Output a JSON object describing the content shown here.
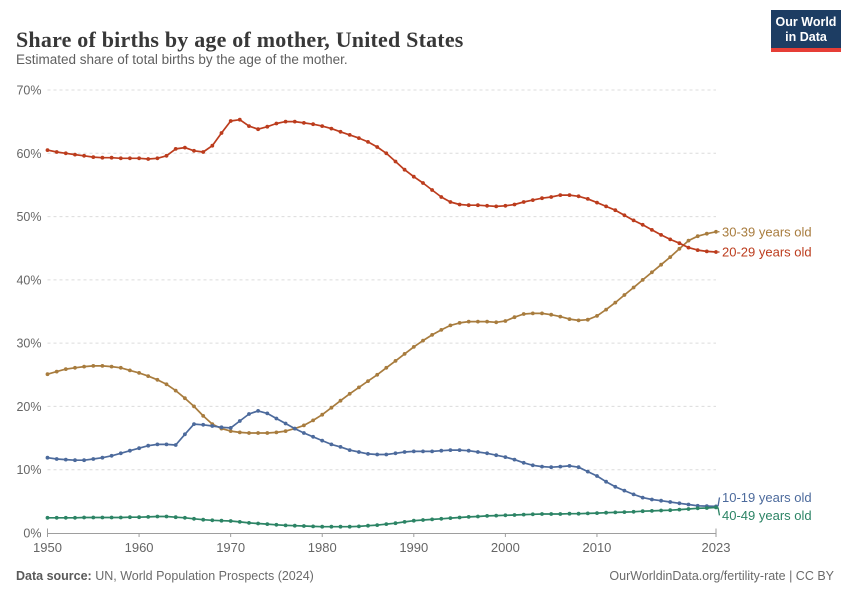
{
  "header": {
    "title": "Share of births by age of mother, United States",
    "subtitle": "Estimated share of total births by the age of the mother.",
    "logo": {
      "line1": "Our World",
      "line2": "in Data",
      "bg_color": "#1d3d63",
      "accent_color": "#e63e36"
    }
  },
  "footer": {
    "source_label": "Data source:",
    "source_text": " UN, World Population Prospects (2024)",
    "link_text": "OurWorldinData.org/fertility-rate | CC BY"
  },
  "chart_data": {
    "type": "line",
    "title": "Share of births by age of mother, United States",
    "subtitle": "Estimated share of total births by the age of the mother.",
    "xlabel": "",
    "ylabel": "",
    "xlim": [
      1950,
      2023
    ],
    "ylim": [
      0,
      70
    ],
    "x_ticks": [
      1950,
      1960,
      1970,
      1980,
      1990,
      2000,
      2010,
      2023
    ],
    "y_ticks": [
      0,
      10,
      20,
      30,
      40,
      50,
      60,
      70
    ],
    "y_tick_suffix": "%",
    "grid": "horizontal-dashed",
    "grid_color": "#dcdcdc",
    "axis_color": "#9e9e9e",
    "tick_text_color": "#666666",
    "legend_position": "right-edge-labels",
    "x_start_year": 1950,
    "series": [
      {
        "name": "30-39 years old",
        "color": "#a87c3e",
        "label_dy": 0,
        "values": [
          25.1,
          25.5,
          25.9,
          26.1,
          26.3,
          26.4,
          26.4,
          26.3,
          26.1,
          25.7,
          25.3,
          24.8,
          24.2,
          23.5,
          22.5,
          21.3,
          20.0,
          18.5,
          17.2,
          16.5,
          16.1,
          15.9,
          15.8,
          15.8,
          15.8,
          15.9,
          16.1,
          16.5,
          17.0,
          17.8,
          18.7,
          19.8,
          20.9,
          22.0,
          23.0,
          24.0,
          25.0,
          26.1,
          27.2,
          28.3,
          29.4,
          30.4,
          31.3,
          32.1,
          32.8,
          33.2,
          33.4,
          33.4,
          33.4,
          33.3,
          33.5,
          34.1,
          34.6,
          34.7,
          34.7,
          34.5,
          34.2,
          33.8,
          33.6,
          33.7,
          34.3,
          35.3,
          36.4,
          37.6,
          38.8,
          40.0,
          41.2,
          42.4,
          43.6,
          44.9,
          46.2,
          46.9,
          47.3,
          47.6
        ]
      },
      {
        "name": "20-29 years old",
        "color": "#bc3c1d",
        "label_dy": 0,
        "values": [
          60.5,
          60.2,
          60.0,
          59.8,
          59.6,
          59.4,
          59.3,
          59.3,
          59.2,
          59.2,
          59.2,
          59.1,
          59.2,
          59.6,
          60.7,
          60.9,
          60.4,
          60.2,
          61.2,
          63.2,
          65.1,
          65.3,
          64.3,
          63.8,
          64.2,
          64.7,
          65.0,
          65.0,
          64.8,
          64.6,
          64.3,
          63.9,
          63.4,
          62.9,
          62.4,
          61.8,
          61.0,
          60.0,
          58.7,
          57.4,
          56.3,
          55.3,
          54.2,
          53.1,
          52.3,
          51.9,
          51.8,
          51.8,
          51.7,
          51.6,
          51.7,
          51.9,
          52.3,
          52.6,
          52.9,
          53.1,
          53.4,
          53.4,
          53.2,
          52.8,
          52.2,
          51.6,
          51.0,
          50.2,
          49.4,
          48.7,
          47.9,
          47.1,
          46.4,
          45.8,
          45.1,
          44.7,
          44.5,
          44.4
        ]
      },
      {
        "name": "10-19 years old",
        "color": "#4c6a9c",
        "label_dy": -9,
        "values": [
          11.9,
          11.7,
          11.6,
          11.5,
          11.5,
          11.7,
          11.9,
          12.2,
          12.6,
          13.0,
          13.4,
          13.8,
          14.0,
          14.0,
          13.9,
          15.6,
          17.2,
          17.1,
          16.9,
          16.7,
          16.6,
          17.7,
          18.8,
          19.3,
          18.9,
          18.1,
          17.3,
          16.5,
          15.8,
          15.2,
          14.6,
          14.0,
          13.6,
          13.1,
          12.8,
          12.5,
          12.4,
          12.4,
          12.6,
          12.8,
          12.9,
          12.9,
          12.9,
          13.0,
          13.1,
          13.1,
          13.0,
          12.8,
          12.6,
          12.3,
          12.0,
          11.6,
          11.1,
          10.7,
          10.5,
          10.4,
          10.5,
          10.6,
          10.4,
          9.7,
          9.0,
          8.1,
          7.3,
          6.7,
          6.1,
          5.6,
          5.3,
          5.1,
          4.9,
          4.7,
          4.5,
          4.3,
          4.25,
          4.2
        ]
      },
      {
        "name": "40-49 years old",
        "color": "#2c8465",
        "label_dy": 8,
        "values": [
          2.4,
          2.4,
          2.4,
          2.4,
          2.45,
          2.45,
          2.45,
          2.45,
          2.45,
          2.5,
          2.5,
          2.55,
          2.6,
          2.6,
          2.5,
          2.4,
          2.25,
          2.1,
          2.0,
          1.95,
          1.9,
          1.75,
          1.6,
          1.5,
          1.4,
          1.3,
          1.2,
          1.15,
          1.1,
          1.05,
          1.0,
          1.0,
          1.0,
          1.0,
          1.05,
          1.15,
          1.25,
          1.4,
          1.55,
          1.75,
          1.95,
          2.05,
          2.15,
          2.25,
          2.35,
          2.45,
          2.55,
          2.6,
          2.7,
          2.75,
          2.8,
          2.85,
          2.9,
          2.95,
          3.0,
          3.0,
          3.0,
          3.05,
          3.05,
          3.1,
          3.15,
          3.2,
          3.25,
          3.3,
          3.35,
          3.45,
          3.5,
          3.55,
          3.6,
          3.7,
          3.8,
          3.9,
          3.95,
          4.05
        ]
      }
    ]
  }
}
